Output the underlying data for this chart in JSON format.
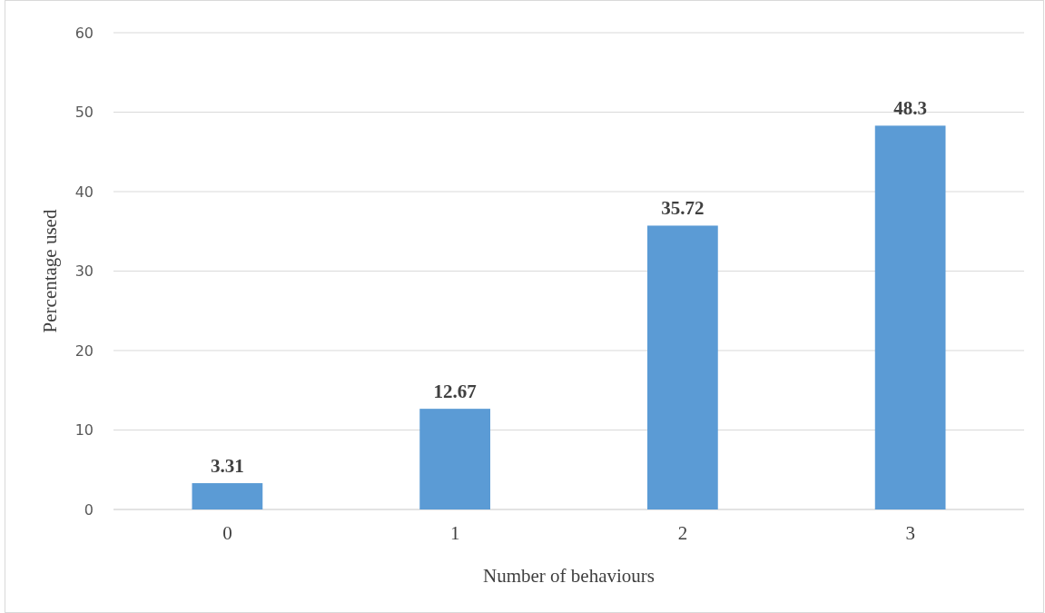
{
  "chart_data": {
    "type": "bar",
    "xlabel": "Number of behaviours",
    "ylabel": "Percentage used",
    "categories": [
      "0",
      "1",
      "2",
      "3"
    ],
    "values": [
      3.31,
      12.67,
      35.72,
      48.3
    ],
    "color": "#5b9bd5",
    "ylim": [
      0,
      60
    ],
    "yticks": [
      0,
      10,
      20,
      30,
      40,
      50,
      60
    ],
    "grid": "y",
    "data_labels": true
  }
}
